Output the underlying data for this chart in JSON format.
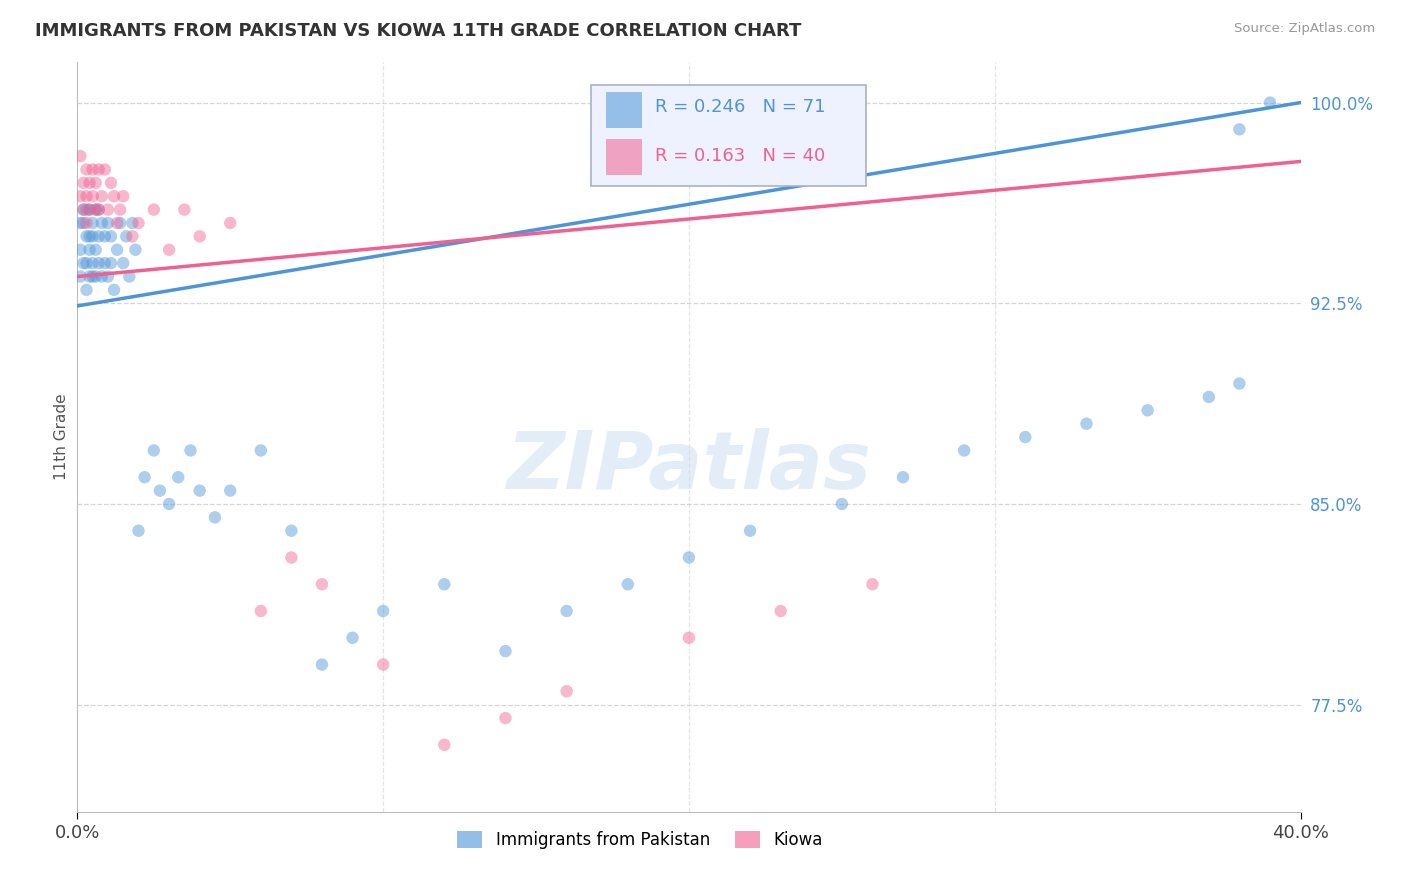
{
  "title": "IMMIGRANTS FROM PAKISTAN VS KIOWA 11TH GRADE CORRELATION CHART",
  "source_text": "Source: ZipAtlas.com",
  "ylabel": "11th Grade",
  "xlim": [
    0.0,
    0.4
  ],
  "ylim": [
    0.735,
    1.015
  ],
  "yticks": [
    0.775,
    0.85,
    0.925,
    1.0
  ],
  "ytick_labels": [
    "77.5%",
    "85.0%",
    "92.5%",
    "100.0%"
  ],
  "xticks": [
    0.0,
    0.4
  ],
  "xtick_labels": [
    "0.0%",
    "40.0%"
  ],
  "legend_r1": "R = 0.246",
  "legend_n1": "N = 71",
  "legend_r2": "R = 0.163",
  "legend_n2": "N = 40",
  "color_blue": "#4d94d8",
  "color_pink": "#f06090",
  "watermark": "ZIPatlas",
  "pak_trendline": [
    0.924,
    1.0
  ],
  "kiowa_trendline": [
    0.935,
    0.978
  ],
  "pak_x": [
    0.001,
    0.001,
    0.001,
    0.002,
    0.002,
    0.002,
    0.003,
    0.003,
    0.003,
    0.003,
    0.004,
    0.004,
    0.004,
    0.004,
    0.005,
    0.005,
    0.005,
    0.005,
    0.006,
    0.006,
    0.006,
    0.007,
    0.007,
    0.007,
    0.008,
    0.008,
    0.009,
    0.009,
    0.01,
    0.01,
    0.011,
    0.011,
    0.012,
    0.013,
    0.014,
    0.015,
    0.016,
    0.017,
    0.018,
    0.019,
    0.02,
    0.022,
    0.025,
    0.027,
    0.03,
    0.033,
    0.037,
    0.04,
    0.045,
    0.05,
    0.06,
    0.07,
    0.08,
    0.09,
    0.1,
    0.12,
    0.14,
    0.16,
    0.18,
    0.2,
    0.22,
    0.25,
    0.27,
    0.29,
    0.31,
    0.33,
    0.35,
    0.37,
    0.38,
    0.38,
    0.39
  ],
  "pak_y": [
    0.955,
    0.945,
    0.935,
    0.96,
    0.94,
    0.955,
    0.95,
    0.94,
    0.93,
    0.96,
    0.935,
    0.95,
    0.945,
    0.96,
    0.94,
    0.955,
    0.935,
    0.95,
    0.945,
    0.96,
    0.935,
    0.95,
    0.94,
    0.96,
    0.935,
    0.955,
    0.94,
    0.95,
    0.935,
    0.955,
    0.94,
    0.95,
    0.93,
    0.945,
    0.955,
    0.94,
    0.95,
    0.935,
    0.955,
    0.945,
    0.84,
    0.86,
    0.87,
    0.855,
    0.85,
    0.86,
    0.87,
    0.855,
    0.845,
    0.855,
    0.87,
    0.84,
    0.79,
    0.8,
    0.81,
    0.82,
    0.795,
    0.81,
    0.82,
    0.83,
    0.84,
    0.85,
    0.86,
    0.87,
    0.875,
    0.88,
    0.885,
    0.89,
    0.895,
    0.99,
    1.0
  ],
  "kiowa_x": [
    0.001,
    0.001,
    0.002,
    0.002,
    0.003,
    0.003,
    0.003,
    0.004,
    0.004,
    0.005,
    0.005,
    0.006,
    0.006,
    0.007,
    0.007,
    0.008,
    0.009,
    0.01,
    0.011,
    0.012,
    0.013,
    0.014,
    0.015,
    0.018,
    0.02,
    0.025,
    0.03,
    0.035,
    0.04,
    0.05,
    0.06,
    0.07,
    0.08,
    0.1,
    0.12,
    0.14,
    0.16,
    0.2,
    0.23,
    0.26
  ],
  "kiowa_y": [
    0.98,
    0.965,
    0.97,
    0.96,
    0.975,
    0.965,
    0.955,
    0.97,
    0.96,
    0.975,
    0.965,
    0.97,
    0.96,
    0.975,
    0.96,
    0.965,
    0.975,
    0.96,
    0.97,
    0.965,
    0.955,
    0.96,
    0.965,
    0.95,
    0.955,
    0.96,
    0.945,
    0.96,
    0.95,
    0.955,
    0.81,
    0.83,
    0.82,
    0.79,
    0.76,
    0.77,
    0.78,
    0.8,
    0.81,
    0.82
  ]
}
